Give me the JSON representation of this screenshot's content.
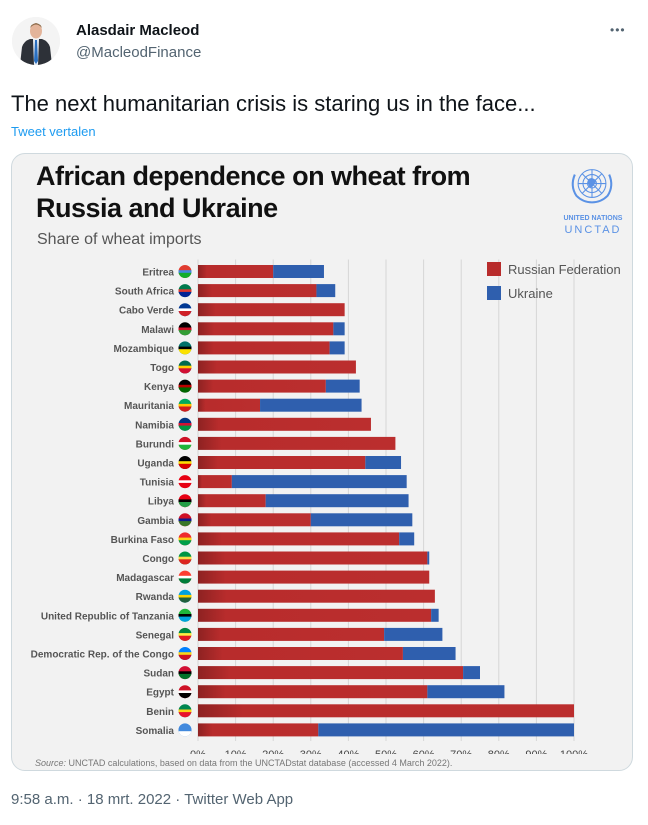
{
  "tweet": {
    "author_name": "Alasdair Macleod",
    "author_handle": "@MacleodFinance",
    "more_icon": "more-horizontal-icon",
    "text": "The next humanitarian crisis is staring us in the face...",
    "translate_label": "Tweet vertalen",
    "time": "9:58 a.m.",
    "date": "18 mrt. 2022",
    "source_app": "Twitter Web App",
    "separator": "·"
  },
  "media": {
    "logo_org": "UNITED NATIONS",
    "logo_name": "UNCTAD",
    "source_label": "Source:",
    "source_text": " UNCTAD calculations, based on data from the UNCTADstat database (accessed 4 March 2022)."
  },
  "colors": {
    "russia": "#b82c2c",
    "ukraine": "#2f5fae",
    "link": "#1d9bf0"
  },
  "chart_data": {
    "type": "bar",
    "orientation": "horizontal",
    "stacked": true,
    "title_line1": "African dependence on wheat from",
    "title_line2": "Russia and Ukraine",
    "subtitle": "Share of wheat imports",
    "xlabel": "",
    "ylabel": "",
    "xlim": [
      0,
      100
    ],
    "x_ticks": [
      "0%",
      "10%",
      "20%",
      "30%",
      "40%",
      "50%",
      "60%",
      "70%",
      "80%",
      "90%",
      "100%"
    ],
    "grid": true,
    "legend_position": "top-right",
    "categories": [
      "Eritrea",
      "South Africa",
      "Cabo Verde",
      "Malawi",
      "Mozambique",
      "Togo",
      "Kenya",
      "Mauritania",
      "Namibia",
      "Burundi",
      "Uganda",
      "Tunisia",
      "Libya",
      "Gambia",
      "Burkina Faso",
      "Congo",
      "Madagascar",
      "Rwanda",
      "United Republic of Tanzania",
      "Senegal",
      "Democratic Rep. of the Congo",
      "Sudan",
      "Egypt",
      "Benin",
      "Somalia"
    ],
    "series": [
      {
        "name": "Russian Federation",
        "values": [
          20,
          31.5,
          39,
          36,
          35,
          42,
          34,
          16.5,
          46,
          52.5,
          44.5,
          9,
          18,
          30,
          53.5,
          61,
          61.5,
          63,
          62,
          49.5,
          54.5,
          70.5,
          61,
          100,
          32
        ]
      },
      {
        "name": "Ukraine",
        "values": [
          13.5,
          5,
          0,
          3,
          4,
          0,
          9,
          27,
          0,
          0,
          9.5,
          46.5,
          38,
          27,
          4,
          0.5,
          0,
          0,
          2,
          15.5,
          14,
          4.5,
          20.5,
          0,
          68
        ]
      }
    ]
  }
}
